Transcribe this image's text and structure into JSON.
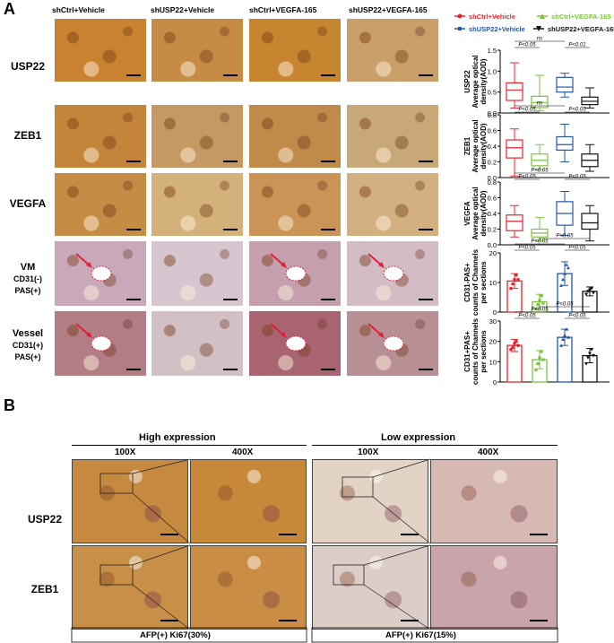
{
  "panels": {
    "a": "A",
    "b": "B"
  },
  "panelA": {
    "columns": [
      "shCtrl+Vehicle",
      "shUSP22+Vehicle",
      "shCtrl+VEGFA-165",
      "shUSP22+VEGFA-165"
    ],
    "rows": [
      {
        "label": "USP22",
        "sub1": "",
        "sub2": ""
      },
      {
        "label": "ZEB1",
        "sub1": "",
        "sub2": ""
      },
      {
        "label": "VEGFA",
        "sub1": "",
        "sub2": ""
      },
      {
        "label": "VM",
        "sub1": "CD31(-)",
        "sub2": "PAS(+)"
      },
      {
        "label": "Vessel",
        "sub1": "CD31(+)",
        "sub2": "PAS(+)"
      }
    ]
  },
  "legend": [
    {
      "name": "shCtrl+Vehicle",
      "color": "#e8262e"
    },
    {
      "name": "shCtrl+VEGFA-165",
      "color": "#7cc242"
    },
    {
      "name": "shUSP22+Vehicle",
      "color": "#2456a6"
    },
    {
      "name": "shUSP22+VEGFA-165",
      "color": "#111111"
    }
  ],
  "chart_data": [
    {
      "type": "box",
      "ylabel": "USP22 Average optical density(AOD)",
      "ylim": [
        0,
        1.5
      ],
      "yticks": [
        "0.0",
        "0.5",
        "1.0",
        "1.5"
      ],
      "annotations": [
        "ns",
        "P<0.05",
        "P<0.01"
      ],
      "series": [
        {
          "name": "shCtrl+Vehicle",
          "min": 0.12,
          "q1": 0.3,
          "median": 0.55,
          "q3": 0.72,
          "max": 1.2
        },
        {
          "name": "shUSP22+Vehicle",
          "min": 0.05,
          "q1": 0.13,
          "median": 0.25,
          "q3": 0.4,
          "max": 0.9
        },
        {
          "name": "shCtrl+VEGFA-165",
          "min": 0.38,
          "q1": 0.5,
          "median": 0.62,
          "q3": 0.85,
          "max": 0.95
        },
        {
          "name": "shUSP22+VEGFA-165",
          "min": 0.12,
          "q1": 0.2,
          "median": 0.28,
          "q3": 0.38,
          "max": 0.6
        }
      ]
    },
    {
      "type": "box",
      "ylabel": "ZEB1 Average optical density(AOD)",
      "ylim": [
        0,
        0.8
      ],
      "yticks": [
        "0.0",
        "0.2",
        "0.4",
        "0.6",
        "0.8"
      ],
      "annotations": [
        "ns",
        "P<0.05",
        "P<0.05"
      ],
      "series": [
        {
          "name": "shCtrl+Vehicle",
          "min": 0.02,
          "q1": 0.25,
          "median": 0.38,
          "q3": 0.48,
          "max": 0.62
        },
        {
          "name": "shUSP22+Vehicle",
          "min": 0.1,
          "q1": 0.15,
          "median": 0.22,
          "q3": 0.3,
          "max": 0.42
        },
        {
          "name": "shCtrl+VEGFA-165",
          "min": 0.2,
          "q1": 0.35,
          "median": 0.42,
          "q3": 0.52,
          "max": 0.68
        },
        {
          "name": "shUSP22+VEGFA-165",
          "min": 0.08,
          "q1": 0.14,
          "median": 0.22,
          "q3": 0.3,
          "max": 0.42
        }
      ]
    },
    {
      "type": "box",
      "ylabel": "VEGFA Average optical density(AOD)",
      "ylim": [
        0,
        0.8
      ],
      "yticks": [
        "0.0",
        "0.2",
        "0.4",
        "0.6",
        "0.8"
      ],
      "annotations": [
        "P<0.05",
        "P<0.05",
        "P<0.05"
      ],
      "series": [
        {
          "name": "shCtrl+Vehicle",
          "min": 0.1,
          "q1": 0.18,
          "median": 0.3,
          "q3": 0.38,
          "max": 0.5
        },
        {
          "name": "shUSP22+Vehicle",
          "min": 0.05,
          "q1": 0.1,
          "median": 0.15,
          "q3": 0.2,
          "max": 0.35
        },
        {
          "name": "shCtrl+VEGFA-165",
          "min": 0.12,
          "q1": 0.25,
          "median": 0.4,
          "q3": 0.55,
          "max": 0.68
        },
        {
          "name": "shUSP22+VEGFA-165",
          "min": 0.05,
          "q1": 0.2,
          "median": 0.28,
          "q3": 0.4,
          "max": 0.5
        }
      ]
    },
    {
      "type": "bar",
      "ylabel": "CD31-PAS+ counts of Channels per sections",
      "ylim": [
        0,
        20
      ],
      "yticks": [
        "0",
        "10",
        "20"
      ],
      "annotations": [
        "P<0.05",
        "P<0.05",
        "P<0.05",
        "P<0.05"
      ],
      "series": [
        {
          "name": "shCtrl+Vehicle",
          "value": 10.5,
          "err": 2.5,
          "points": [
            8,
            9.5,
            11,
            12.5,
            11
          ]
        },
        {
          "name": "shUSP22+Vehicle",
          "value": 3.5,
          "err": 2.5,
          "points": [
            1,
            2.5,
            4,
            5.5,
            3
          ]
        },
        {
          "name": "shCtrl+VEGFA-165",
          "value": 13,
          "err": 4,
          "points": [
            9,
            11,
            13,
            16,
            15
          ]
        },
        {
          "name": "shUSP22+VEGFA-165",
          "value": 7,
          "err": 1.5,
          "points": [
            6,
            7,
            7.5,
            8,
            6.5
          ]
        }
      ]
    },
    {
      "type": "bar",
      "ylabel": "CD31+PAS+ counts of Channels per sections",
      "ylim": [
        0,
        30
      ],
      "yticks": [
        "0",
        "10",
        "20",
        "30"
      ],
      "annotations": [
        "P<0.05",
        "P<0.05",
        "P<0.05",
        "P<0.05"
      ],
      "series": [
        {
          "name": "shCtrl+Vehicle",
          "value": 18,
          "err": 3,
          "points": [
            16,
            17,
            19,
            20,
            18
          ]
        },
        {
          "name": "shUSP22+Vehicle",
          "value": 11,
          "err": 4.5,
          "points": [
            6,
            9,
            12,
            15,
            11
          ]
        },
        {
          "name": "shCtrl+VEGFA-165",
          "value": 22,
          "err": 4,
          "points": [
            18,
            21,
            23,
            26,
            22
          ]
        },
        {
          "name": "shUSP22+VEGFA-165",
          "value": 13,
          "err": 3.5,
          "points": [
            9,
            12,
            14,
            16,
            13
          ]
        }
      ]
    }
  ],
  "panelB": {
    "high_title": "High expression",
    "low_title": "Low expression",
    "mag_100": "100X",
    "mag_400": "400X",
    "row1": "USP22",
    "row2": "ZEB1",
    "footer_high": "AFP(+) Ki67(30%)",
    "footer_low": "AFP(+) Ki67(15%)"
  }
}
